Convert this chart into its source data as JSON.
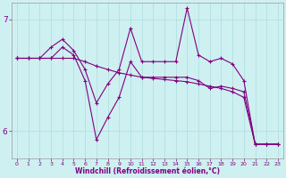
{
  "xlabel": "Windchill (Refroidissement éolien,°C)",
  "bg_color": "#cff0f0",
  "grid_color": "#aadddd",
  "line_color": "#800080",
  "xlim": [
    -0.5,
    23.5
  ],
  "ylim": [
    5.75,
    7.15
  ],
  "xticks": [
    0,
    1,
    2,
    3,
    4,
    5,
    6,
    7,
    8,
    9,
    10,
    11,
    12,
    13,
    14,
    15,
    16,
    17,
    18,
    19,
    20,
    21,
    22,
    23
  ],
  "yticks": [
    6,
    7
  ],
  "series1_x": [
    0,
    1,
    2,
    3,
    4,
    5,
    6,
    7,
    8,
    9,
    10,
    11,
    12,
    13,
    14,
    15,
    16,
    17,
    18,
    19,
    20,
    21,
    22,
    23
  ],
  "series1_y": [
    6.65,
    6.65,
    6.65,
    6.65,
    6.65,
    6.65,
    6.62,
    6.58,
    6.55,
    6.52,
    6.5,
    6.48,
    6.47,
    6.46,
    6.45,
    6.44,
    6.42,
    6.4,
    6.38,
    6.35,
    6.3,
    5.88,
    5.88,
    5.88
  ],
  "series2_x": [
    0,
    1,
    2,
    3,
    4,
    5,
    6,
    7,
    8,
    9,
    10,
    11,
    12,
    13,
    14,
    15,
    16,
    17,
    18,
    19,
    20,
    21,
    22,
    23
  ],
  "series2_y": [
    6.65,
    6.65,
    6.65,
    6.75,
    6.82,
    6.72,
    6.55,
    6.25,
    6.42,
    6.55,
    6.92,
    6.62,
    6.62,
    6.62,
    6.62,
    7.1,
    6.68,
    6.62,
    6.65,
    6.6,
    6.45,
    5.88,
    5.88,
    5.88
  ],
  "series3_x": [
    0,
    1,
    2,
    3,
    4,
    5,
    6,
    7,
    8,
    9,
    10,
    11,
    12,
    13,
    14,
    15,
    16,
    17,
    18,
    19,
    20,
    21,
    22,
    23
  ],
  "series3_y": [
    6.65,
    6.65,
    6.65,
    6.65,
    6.75,
    6.68,
    6.45,
    5.92,
    6.12,
    6.3,
    6.62,
    6.48,
    6.48,
    6.48,
    6.48,
    6.48,
    6.45,
    6.38,
    6.4,
    6.38,
    6.35,
    5.88,
    5.88,
    5.88
  ]
}
